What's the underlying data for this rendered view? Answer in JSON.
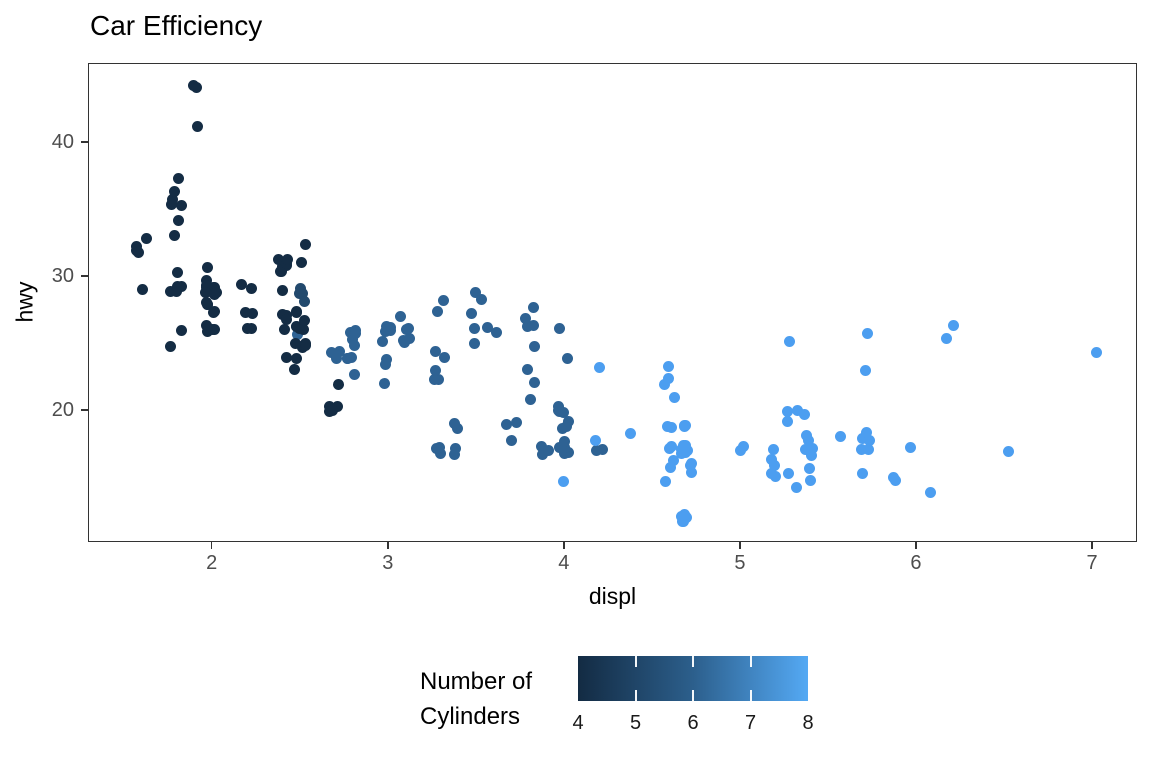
{
  "title": "Car Efficiency",
  "chart_data": {
    "type": "scatter",
    "title": "Car Efficiency",
    "xlabel": "displ",
    "ylabel": "hwy",
    "xlim": [
      1.2975,
      7.2555
    ],
    "ylim": [
      10.15,
      45.9
    ],
    "x_ticks": [
      2,
      3,
      4,
      5,
      6,
      7
    ],
    "x_minor_ticks": [
      1.5,
      2.5,
      3.5,
      4.5,
      5.5,
      6.5
    ],
    "y_ticks": [
      20,
      30,
      40
    ],
    "y_minor_ticks": [
      15,
      25,
      35,
      45
    ],
    "grid": true,
    "point_jitter": true,
    "cyl_colors": {
      "4": "#142C44",
      "5": "#22496D",
      "6": "#2E6293",
      "8": "#4C9EF0"
    },
    "legend": {
      "position": "bottom",
      "title_lines": [
        "Number of",
        "Cylinders"
      ],
      "ticks": [
        4,
        5,
        6,
        7,
        8
      ],
      "range": [
        4,
        8
      ],
      "gradient_low": "#132B43",
      "gradient_mid": "#2C5F8C",
      "gradient_high": "#54A9F4"
    },
    "series_note": "points are [displ, hwy, cyl]",
    "points": [
      [
        1.8,
        29,
        4
      ],
      [
        1.8,
        29,
        4
      ],
      [
        2.0,
        31,
        4
      ],
      [
        2.0,
        30,
        4
      ],
      [
        2.8,
        26,
        6
      ],
      [
        2.8,
        26,
        6
      ],
      [
        3.1,
        27,
        6
      ],
      [
        1.8,
        26,
        4
      ],
      [
        1.8,
        25,
        4
      ],
      [
        2.0,
        28,
        4
      ],
      [
        2.0,
        27,
        4
      ],
      [
        2.8,
        25,
        6
      ],
      [
        2.8,
        25,
        6
      ],
      [
        3.1,
        25,
        6
      ],
      [
        3.1,
        25,
        6
      ],
      [
        2.8,
        24,
        6
      ],
      [
        3.1,
        25,
        6
      ],
      [
        4.2,
        23,
        8
      ],
      [
        5.3,
        20,
        8
      ],
      [
        5.3,
        15,
        8
      ],
      [
        5.3,
        20,
        8
      ],
      [
        5.7,
        17,
        8
      ],
      [
        6.0,
        17,
        8
      ],
      [
        5.7,
        26,
        8
      ],
      [
        5.7,
        23,
        8
      ],
      [
        6.2,
        26,
        8
      ],
      [
        6.2,
        25,
        8
      ],
      [
        7.0,
        24,
        8
      ],
      [
        5.3,
        19,
        8
      ],
      [
        5.3,
        14,
        8
      ],
      [
        5.7,
        15,
        8
      ],
      [
        6.5,
        17,
        8
      ],
      [
        2.4,
        27,
        4
      ],
      [
        2.4,
        30,
        4
      ],
      [
        3.1,
        26,
        6
      ],
      [
        3.5,
        29,
        6
      ],
      [
        3.6,
        26,
        6
      ],
      [
        2.4,
        24,
        4
      ],
      [
        3.0,
        24,
        6
      ],
      [
        3.3,
        22,
        6
      ],
      [
        3.3,
        22,
        6
      ],
      [
        3.3,
        24,
        6
      ],
      [
        3.3,
        24,
        6
      ],
      [
        3.3,
        17,
        6
      ],
      [
        3.8,
        22,
        6
      ],
      [
        3.8,
        21,
        6
      ],
      [
        3.8,
        23,
        6
      ],
      [
        4.0,
        17,
        6
      ],
      [
        3.7,
        19,
        6
      ],
      [
        3.7,
        18,
        6
      ],
      [
        3.9,
        17,
        6
      ],
      [
        3.9,
        17,
        6
      ],
      [
        4.7,
        19,
        8
      ],
      [
        4.7,
        19,
        8
      ],
      [
        4.7,
        12,
        8
      ],
      [
        5.2,
        17,
        8
      ],
      [
        5.2,
        15,
        8
      ],
      [
        3.9,
        17,
        6
      ],
      [
        4.7,
        17,
        8
      ],
      [
        4.7,
        12,
        8
      ],
      [
        4.7,
        17,
        8
      ],
      [
        5.2,
        16,
        8
      ],
      [
        5.7,
        18,
        8
      ],
      [
        5.9,
        15,
        8
      ],
      [
        4.7,
        16,
        8
      ],
      [
        4.7,
        12,
        8
      ],
      [
        4.7,
        17,
        8
      ],
      [
        4.7,
        17,
        8
      ],
      [
        4.7,
        16,
        8
      ],
      [
        4.7,
        12,
        8
      ],
      [
        5.2,
        15,
        8
      ],
      [
        5.2,
        16,
        8
      ],
      [
        5.7,
        17,
        8
      ],
      [
        5.9,
        15,
        8
      ],
      [
        4.6,
        17,
        8
      ],
      [
        5.4,
        17,
        8
      ],
      [
        5.4,
        18,
        8
      ],
      [
        4.0,
        17,
        6
      ],
      [
        4.0,
        19,
        6
      ],
      [
        4.0,
        17,
        6
      ],
      [
        4.0,
        19,
        6
      ],
      [
        4.6,
        19,
        8
      ],
      [
        5.0,
        17,
        8
      ],
      [
        4.2,
        17,
        6
      ],
      [
        4.2,
        17,
        6
      ],
      [
        4.6,
        16,
        8
      ],
      [
        4.6,
        16,
        8
      ],
      [
        4.6,
        17,
        8
      ],
      [
        5.4,
        15,
        8
      ],
      [
        5.4,
        17,
        8
      ],
      [
        3.8,
        26,
        6
      ],
      [
        3.8,
        25,
        6
      ],
      [
        4.0,
        26,
        6
      ],
      [
        4.0,
        24,
        6
      ],
      [
        4.6,
        21,
        8
      ],
      [
        4.6,
        22,
        8
      ],
      [
        4.6,
        23,
        8
      ],
      [
        4.6,
        22,
        8
      ],
      [
        5.4,
        20,
        8
      ],
      [
        1.6,
        33,
        4
      ],
      [
        1.6,
        32,
        4
      ],
      [
        1.6,
        32,
        4
      ],
      [
        1.6,
        29,
        4
      ],
      [
        1.6,
        32,
        4
      ],
      [
        1.8,
        34,
        4
      ],
      [
        1.8,
        36,
        4
      ],
      [
        1.8,
        36,
        4
      ],
      [
        2.0,
        29,
        4
      ],
      [
        2.4,
        26,
        4
      ],
      [
        2.4,
        27,
        4
      ],
      [
        2.4,
        30,
        4
      ],
      [
        2.4,
        31,
        4
      ],
      [
        2.5,
        26,
        6
      ],
      [
        2.5,
        26,
        6
      ],
      [
        3.3,
        28,
        6
      ],
      [
        2.0,
        26,
        4
      ],
      [
        2.0,
        29,
        4
      ],
      [
        2.0,
        28,
        4
      ],
      [
        2.0,
        27,
        4
      ],
      [
        2.7,
        24,
        6
      ],
      [
        2.7,
        24,
        6
      ],
      [
        2.7,
        24,
        6
      ],
      [
        3.0,
        22,
        6
      ],
      [
        3.7,
        19,
        6
      ],
      [
        4.0,
        20,
        6
      ],
      [
        4.7,
        17,
        8
      ],
      [
        4.7,
        12,
        8
      ],
      [
        4.7,
        19,
        8
      ],
      [
        5.7,
        18,
        8
      ],
      [
        6.1,
        14,
        8
      ],
      [
        4.0,
        15,
        8
      ],
      [
        4.2,
        18,
        8
      ],
      [
        4.4,
        18,
        8
      ],
      [
        4.6,
        15,
        8
      ],
      [
        5.4,
        17,
        8
      ],
      [
        5.4,
        16,
        8
      ],
      [
        5.4,
        18,
        8
      ],
      [
        4.0,
        17,
        6
      ],
      [
        4.0,
        19,
        6
      ],
      [
        4.6,
        19,
        8
      ],
      [
        5.0,
        17,
        8
      ],
      [
        2.4,
        29,
        4
      ],
      [
        2.4,
        27,
        4
      ],
      [
        2.5,
        31,
        4
      ],
      [
        2.5,
        32,
        4
      ],
      [
        3.5,
        27,
        6
      ],
      [
        3.5,
        26,
        6
      ],
      [
        3.0,
        26,
        6
      ],
      [
        3.0,
        25,
        6
      ],
      [
        3.5,
        25,
        6
      ],
      [
        3.3,
        17,
        6
      ],
      [
        3.3,
        17,
        6
      ],
      [
        4.0,
        20,
        6
      ],
      [
        5.6,
        18,
        8
      ],
      [
        3.1,
        26,
        6
      ],
      [
        3.8,
        26,
        6
      ],
      [
        3.8,
        27,
        6
      ],
      [
        3.8,
        28,
        6
      ],
      [
        5.3,
        25,
        8
      ],
      [
        2.5,
        25,
        4
      ],
      [
        2.5,
        24,
        4
      ],
      [
        2.5,
        27,
        4
      ],
      [
        2.5,
        25,
        4
      ],
      [
        2.5,
        26,
        4
      ],
      [
        2.5,
        23,
        4
      ],
      [
        2.2,
        26,
        4
      ],
      [
        2.2,
        26,
        4
      ],
      [
        2.5,
        26,
        4
      ],
      [
        2.5,
        26,
        4
      ],
      [
        2.5,
        25,
        4
      ],
      [
        2.5,
        27,
        4
      ],
      [
        2.5,
        25,
        4
      ],
      [
        2.5,
        27,
        4
      ],
      [
        2.7,
        20,
        4
      ],
      [
        2.7,
        20,
        4
      ],
      [
        3.4,
        19,
        6
      ],
      [
        3.4,
        17,
        6
      ],
      [
        4.0,
        20,
        6
      ],
      [
        4.7,
        17,
        8
      ],
      [
        2.2,
        29,
        4
      ],
      [
        2.2,
        27,
        4
      ],
      [
        2.4,
        31,
        4
      ],
      [
        2.4,
        31,
        4
      ],
      [
        3.0,
        26,
        6
      ],
      [
        3.0,
        26,
        6
      ],
      [
        3.5,
        28,
        6
      ],
      [
        2.2,
        27,
        4
      ],
      [
        2.2,
        29,
        4
      ],
      [
        2.4,
        31,
        4
      ],
      [
        2.4,
        31,
        4
      ],
      [
        3.0,
        26,
        6
      ],
      [
        3.3,
        27,
        6
      ],
      [
        1.8,
        30,
        4
      ],
      [
        1.8,
        33,
        4
      ],
      [
        1.8,
        35,
        4
      ],
      [
        1.8,
        37,
        4
      ],
      [
        1.8,
        35,
        4
      ],
      [
        4.7,
        15,
        8
      ],
      [
        5.7,
        18,
        8
      ],
      [
        3.0,
        23,
        6
      ],
      [
        3.3,
        23,
        6
      ],
      [
        2.7,
        20,
        4
      ],
      [
        2.7,
        20,
        4
      ],
      [
        2.7,
        22,
        4
      ],
      [
        3.4,
        17,
        6
      ],
      [
        3.4,
        19,
        6
      ],
      [
        4.0,
        18,
        6
      ],
      [
        4.0,
        20,
        6
      ],
      [
        2.0,
        29,
        4
      ],
      [
        2.0,
        26,
        4
      ],
      [
        2.0,
        29,
        4
      ],
      [
        2.0,
        29,
        4
      ],
      [
        2.8,
        24,
        6
      ],
      [
        1.9,
        44,
        4
      ],
      [
        2.0,
        29,
        4
      ],
      [
        2.0,
        26,
        4
      ],
      [
        2.0,
        29,
        4
      ],
      [
        2.0,
        29,
        4
      ],
      [
        2.5,
        29,
        5
      ],
      [
        2.5,
        29,
        5
      ],
      [
        2.8,
        23,
        6
      ],
      [
        2.8,
        24,
        6
      ],
      [
        1.9,
        44,
        4
      ],
      [
        1.9,
        41,
        4
      ],
      [
        2.0,
        29,
        4
      ],
      [
        2.0,
        26,
        4
      ],
      [
        2.5,
        28,
        5
      ],
      [
        2.5,
        29,
        5
      ],
      [
        1.8,
        29,
        4
      ],
      [
        1.8,
        29,
        4
      ],
      [
        2.0,
        28,
        4
      ],
      [
        2.0,
        29,
        4
      ],
      [
        2.8,
        26,
        6
      ],
      [
        2.8,
        26,
        6
      ],
      [
        3.6,
        26,
        6
      ]
    ]
  },
  "colors": {
    "panel_border": "#333333",
    "grid_major": "#E7E7E7",
    "grid_minor": "#F2F2F2",
    "tick_label": "#4D4D4D",
    "text": "#000000"
  }
}
